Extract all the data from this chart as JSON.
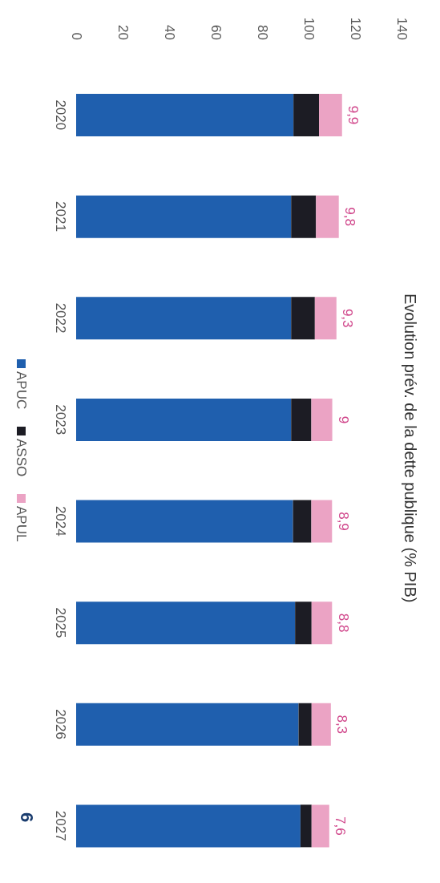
{
  "chart_data": {
    "type": "bar",
    "orientation": "horizontal",
    "title": "Evolution prév. de la dette publique (% PIB)",
    "categories": [
      "2020",
      "2021",
      "2022",
      "2023",
      "2024",
      "2025",
      "2026",
      "2027"
    ],
    "stacked": true,
    "series": [
      {
        "name": "APUC",
        "color": "#1f5fae",
        "values": [
          93.5,
          92.5,
          92.5,
          92.5,
          93.3,
          94.2,
          95.7,
          96.5
        ]
      },
      {
        "name": "ASSO",
        "color": "#1c1c24",
        "values": [
          11,
          10.7,
          10.2,
          8.7,
          7.9,
          7.1,
          5.6,
          4.8
        ]
      },
      {
        "name": "APUL",
        "color": "#eba3c4",
        "values": [
          9.9,
          9.8,
          9.3,
          9,
          8.9,
          8.8,
          8.3,
          7.6
        ],
        "value_labels": [
          "9,9",
          "9,8",
          "9,3",
          "9",
          "8,9",
          "8,8",
          "8,3",
          "7,6"
        ]
      }
    ],
    "xlim": [
      0,
      140
    ],
    "xticks": [
      0,
      20,
      40,
      60,
      80,
      100,
      120,
      140
    ],
    "legend": "left",
    "annotations": [
      "6"
    ]
  }
}
